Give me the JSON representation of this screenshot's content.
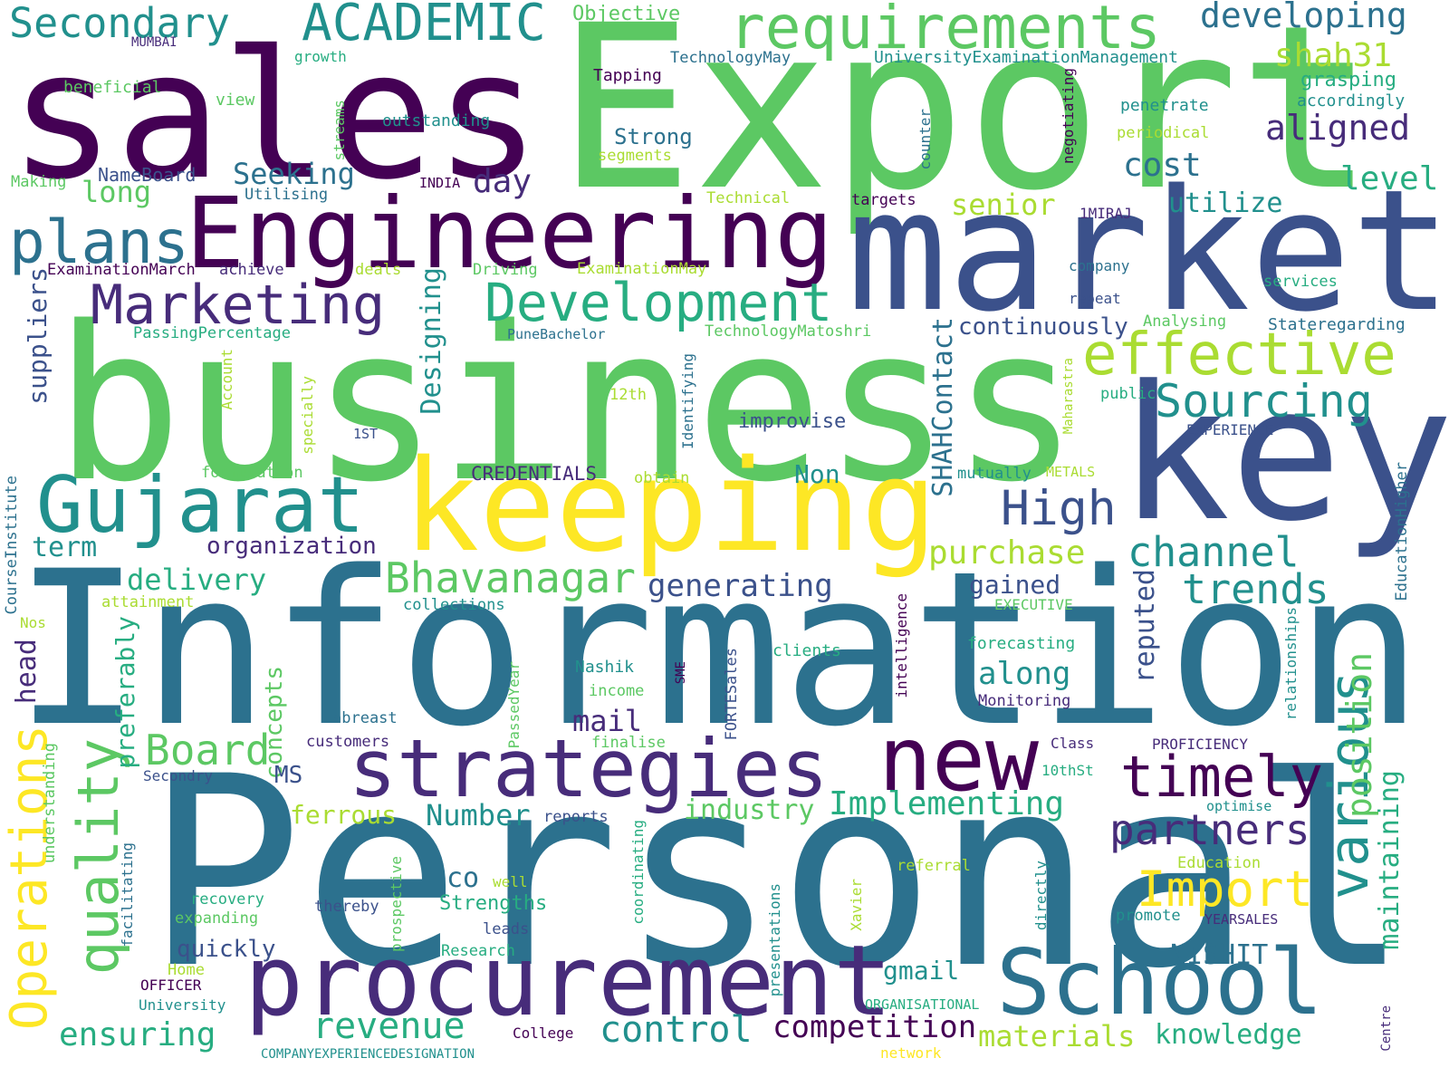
{
  "colors": {
    "background": "#ffffff",
    "palette": [
      "#440154",
      "#472c7a",
      "#3b518b",
      "#2c718e",
      "#21908d",
      "#27ad81",
      "#5cc863",
      "#aadc32",
      "#fde725"
    ]
  },
  "words": [
    "Export",
    "business",
    "Information",
    "Personal",
    "sales",
    "market",
    "key",
    "Engineering",
    "keeping",
    "procurement",
    "strategies",
    "School",
    "new",
    "Gujarat",
    "plans",
    "requirements",
    "ACADEMIC",
    "Secondary",
    "Development",
    "Marketing",
    "effective",
    "Sourcing",
    "timely",
    "Operations",
    "quality",
    "various",
    "Import",
    "partners",
    "channel",
    "trends",
    "Bhavanagar",
    "High",
    "purchase",
    "control",
    "competition",
    "revenue",
    "materials",
    "knowledge",
    "Board",
    "Implementing",
    "ensuring",
    "maintaining",
    "position",
    "developing",
    "shah31",
    "aligned",
    "cost",
    "level",
    "utilize",
    "senior",
    "Seeking",
    "long",
    "day",
    "Designing",
    "SHAHContact",
    "suppliers",
    "delivery",
    "generating",
    "organization",
    "term",
    "improvise",
    "continuously",
    "Non",
    "gained",
    "reputed",
    "along",
    "mail",
    "head",
    "preferably",
    "concepts",
    "MS",
    "ferrous",
    "Number",
    "industry",
    "co",
    "Strengths",
    "NISHIT",
    "gmail",
    "quickly",
    "Objective",
    "MUMBAI",
    "growth",
    "beneficial",
    "view",
    "outstanding",
    "streams",
    "TechnologyMay",
    "UniversityExaminationManagement",
    "Tapping",
    "grasping",
    "accordingly",
    "penetrate",
    "periodical",
    "negotiating",
    "Strong",
    "segments",
    "NameBoard",
    "Making",
    "Utilising",
    "INDIA",
    "Technical",
    "targets",
    "1MIRAJ",
    "counter",
    "ExaminationMarch",
    "achieve",
    "deals",
    "Driving",
    "ExaminationMay",
    "company",
    "services",
    "repeat",
    "Analysing",
    "Stateregarding",
    "PassingPercentage",
    "PuneBachelor",
    "TechnologyMatoshri",
    "CourseInstitute",
    "Account",
    "12th",
    "1ST",
    "specially",
    "formulation",
    "Identifying",
    "Maharastra",
    "public",
    "EXPERIENCE",
    "CREDENTIALS",
    "obtain",
    "mutually",
    "METALS",
    "EducationHigher",
    "attainment",
    "collections",
    "EXECUTIVE",
    "Nos",
    "forecasting",
    "intelligence",
    "relationships",
    "clients",
    "Nashik",
    "SME",
    "income",
    "Monitoring",
    "abreast",
    "customers",
    "PassedYear",
    "finalise",
    "FORTESales",
    "Class",
    "PROFICIENCY",
    "Secondry",
    "10thSt",
    "understanding",
    "optimise",
    "reports",
    "coordinating",
    "facilitating",
    "prospective",
    "well",
    "recovery",
    "expanding",
    "thereby",
    "Research",
    "leads",
    "presentations",
    "Xavier",
    "referral",
    "directly",
    "Education",
    "promote",
    "YEARSALES",
    "Home",
    "OFFICER",
    "University",
    "ORGANISATIONAL",
    "College",
    "Centre",
    "COMPANYEXPERIENCEDESIGNATION",
    "network"
  ]
}
